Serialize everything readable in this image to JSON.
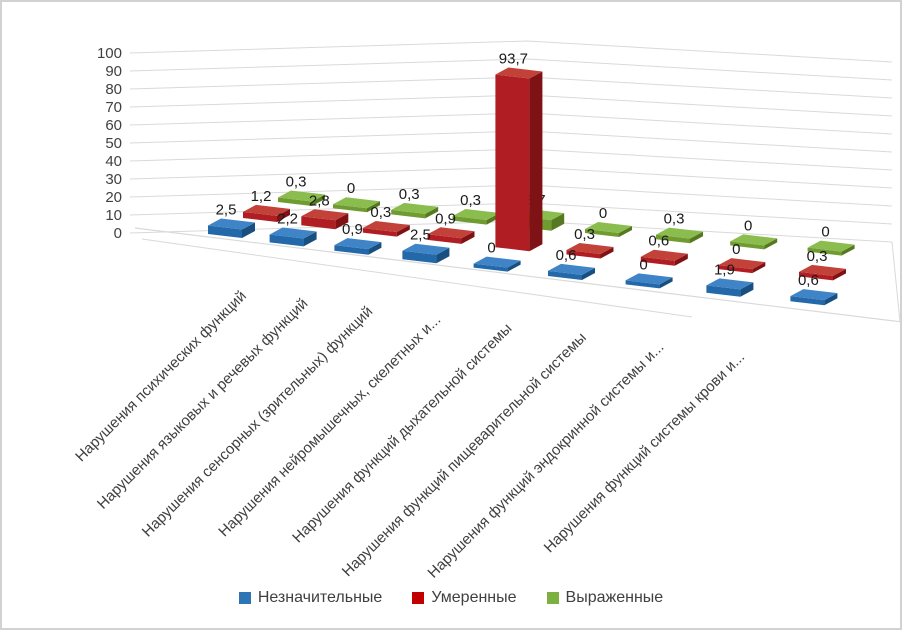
{
  "frame": {
    "background": "#ffffff",
    "border_color": "#d2d2d2"
  },
  "chart_data": {
    "type": "bar",
    "subtype": "3d-clustered-column",
    "title": "",
    "xlabel": "",
    "ylabel": "",
    "value_axis": {
      "min": 0,
      "max": 100,
      "step": 10,
      "tick_labels": [
        "0",
        "10",
        "20",
        "30",
        "40",
        "50",
        "60",
        "70",
        "80",
        "90",
        "100"
      ]
    },
    "gridlines": true,
    "grid_color": "#d9d9d9",
    "axis_text_color": "#404040",
    "data_label_color": "#1a1a1a",
    "categories": [
      "Нарушения психических функций",
      "Нарушения языковых и речевых функций",
      "Нарушения сенсорных (зрительных) функций",
      "Нарушения нейромышечных, скелетных и...",
      "Нарушения функций дыхательной системы",
      "Нарушения функций пищеварительной системы",
      "Нарушения функций эндокринной системы и...",
      "Нарушения функций системы крови и...",
      ""
    ],
    "series": [
      {
        "name": "Незначительные",
        "color": "#2E75B6",
        "face_colors": {
          "top": "#3E84C6",
          "front": "#2368A8",
          "side": "#184F80"
        },
        "values": [
          2.5,
          2.2,
          0.9,
          2.5,
          0,
          0.6,
          0,
          1.9,
          0.6
        ],
        "labels": [
          "2,5",
          "2,2",
          "0,9",
          "2,5",
          "0",
          "0,6",
          "0",
          "1,9",
          "0,6"
        ]
      },
      {
        "name": "Умеренные",
        "color": "#C00000",
        "face_colors": {
          "top": "#C2423A",
          "front": "#B01E23",
          "side": "#7F1215"
        },
        "values": [
          1.2,
          2.8,
          0.3,
          0.9,
          93.7,
          0.3,
          0.6,
          0,
          0.3
        ],
        "labels": [
          "1,2",
          "2,8",
          "0,3",
          "0,9",
          "93,7",
          "0,3",
          "0,6",
          "0",
          "0,3"
        ]
      },
      {
        "name": "Выраженные",
        "color": "#7CB13F",
        "face_colors": {
          "top": "#8ABD4D",
          "front": "#6F9B30",
          "side": "#567821"
        },
        "values": [
          0.3,
          0,
          0.3,
          0.3,
          3.7,
          0,
          0.3,
          0,
          0
        ],
        "labels": [
          "0,3",
          "0",
          "0,3",
          "0,3",
          "3,7",
          "0",
          "0,3",
          "0",
          "0"
        ]
      }
    ],
    "legend": {
      "position": "bottom",
      "entries": [
        "Незначительные",
        "Умеренные",
        "Выраженные"
      ]
    }
  }
}
